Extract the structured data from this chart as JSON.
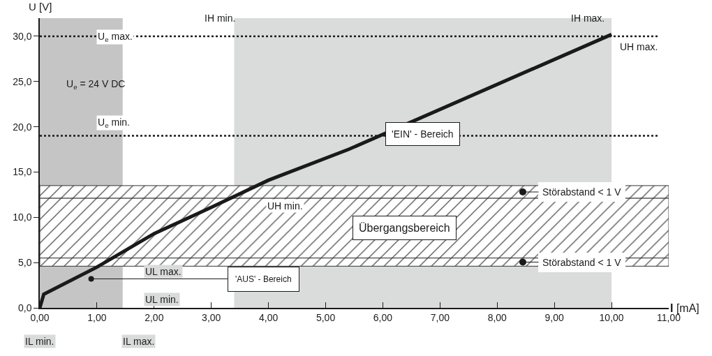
{
  "chart_data": {
    "type": "line",
    "xlabel": "I [mA]",
    "ylabel": "U [V]",
    "x": [
      0,
      0.07,
      1,
      2,
      3,
      4,
      5.4,
      10
    ],
    "series": [
      {
        "color": "#1a1a1a",
        "values": [
          0,
          1.5,
          4.5,
          8.2,
          11.1,
          14.1,
          17.5,
          30.2
        ]
      }
    ],
    "xlim": [
      0,
      11
    ],
    "ylim": [
      0,
      32
    ],
    "xticks": [
      {
        "value": 0,
        "label": "0,00"
      },
      {
        "value": 1,
        "label": "1,00"
      },
      {
        "value": 2,
        "label": "2,00"
      },
      {
        "value": 3,
        "label": "3,00"
      },
      {
        "value": 4,
        "label": "4,00"
      },
      {
        "value": 5,
        "label": "5,00"
      },
      {
        "value": 6,
        "label": "6,00"
      },
      {
        "value": 7,
        "label": "7,00"
      },
      {
        "value": 8,
        "label": "8,00"
      },
      {
        "value": 9,
        "label": "9,00"
      },
      {
        "value": 10,
        "label": "10,00"
      },
      {
        "value": 11,
        "label": "11,00"
      }
    ],
    "yticks": [
      {
        "value": 0,
        "label": "0,0"
      },
      {
        "value": 5,
        "label": "5,0"
      },
      {
        "value": 10,
        "label": "10,0"
      },
      {
        "value": 15,
        "label": "15,0"
      },
      {
        "value": 20,
        "label": "20,0"
      },
      {
        "value": 25,
        "label": "25,0"
      },
      {
        "value": 30,
        "label": "30,0"
      }
    ],
    "grid": false,
    "marker": "none",
    "line_style": "solid",
    "ref_lines": [
      {
        "axis": "y",
        "value": 30,
        "label": "U$_{e}$ max.",
        "line_style": "dotted",
        "color": "#1a1a1a"
      },
      {
        "axis": "y",
        "value": 19,
        "label": "U$_{e}$ min.",
        "line_style": "dotted",
        "color": "#1a1a1a"
      }
    ],
    "bands": [
      {
        "axis": "x",
        "from": 3.4,
        "to": 10,
        "label": "'EIN' - Bereich",
        "color": "#d9dcdb"
      },
      {
        "axis": "x",
        "from": 0,
        "to": 1.45,
        "label": "'AUS' - Bereich",
        "color": "#c4c5c4"
      },
      {
        "axis": "y",
        "from": 12.1,
        "to": 13.5,
        "label": "Störabstand < 1 V",
        "color": "#333333"
      },
      {
        "axis": "y",
        "from": 5.5,
        "to": 12.1,
        "label": "Übergangsbereich",
        "color": "#333333"
      },
      {
        "axis": "y",
        "from": 4.6,
        "to": 5.5,
        "label": "Störabstand < 1 V",
        "color": "#333333"
      }
    ],
    "annotations": [
      "U$_{e}$ = 24 V DC",
      "IH min.",
      "IH max.",
      "UH max.",
      "UH min.",
      "UL max.",
      "UL min.",
      "IL min.",
      "IL max."
    ]
  }
}
